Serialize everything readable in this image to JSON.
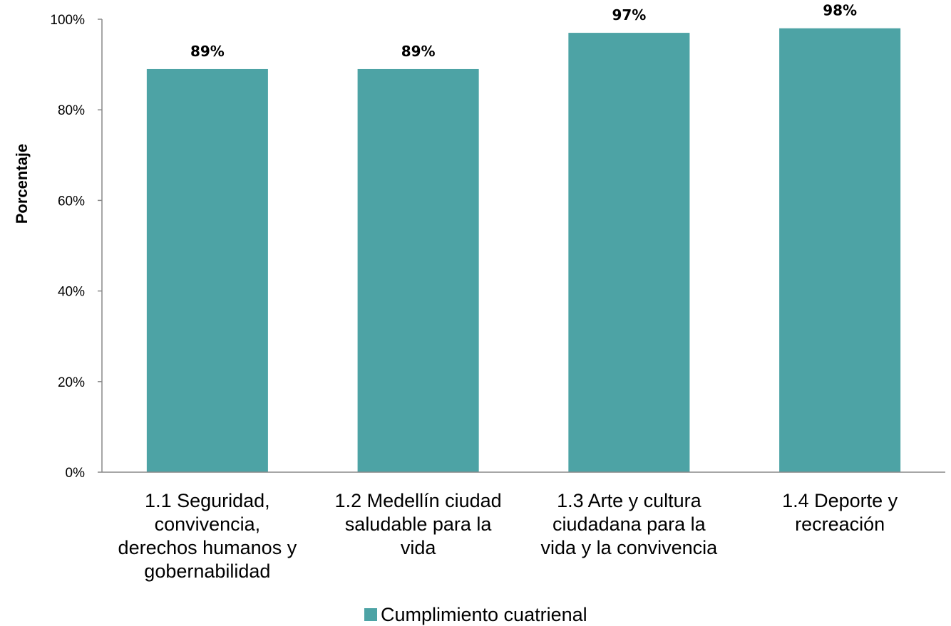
{
  "chart_data": {
    "type": "bar",
    "title": "",
    "xlabel": "",
    "ylabel": "Porcentaje",
    "ylim": [
      0,
      100
    ],
    "yticks": [
      "0%",
      "20%",
      "40%",
      "60%",
      "80%",
      "100%"
    ],
    "ytick_values": [
      0,
      20,
      40,
      60,
      80,
      100
    ],
    "categories": [
      [
        "1.1 Seguridad,",
        "convivencia,",
        "derechos humanos y",
        "gobernabilidad"
      ],
      [
        "1.2 Medellín ciudad",
        "saludable para la",
        "vida"
      ],
      [
        "1.3 Arte y cultura",
        "ciudadana para la",
        "vida y la convivencia"
      ],
      [
        "1.4 Deporte y",
        "recreación"
      ]
    ],
    "series": [
      {
        "name": "Cumplimiento cuatrienal",
        "values": [
          89,
          89,
          97,
          98
        ],
        "labels": [
          "89%",
          "89%",
          "97%",
          "98%"
        ],
        "color": "#4da3a5"
      }
    ],
    "legend": "bottom",
    "grid": false
  }
}
